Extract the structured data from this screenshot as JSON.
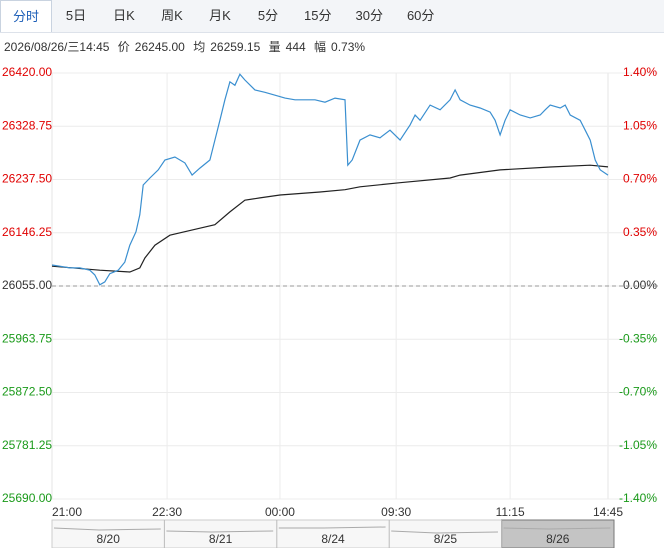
{
  "tabs": [
    "分时",
    "5日",
    "日K",
    "周K",
    "月K",
    "5分",
    "15分",
    "30分",
    "60分"
  ],
  "active_tab": 0,
  "info": {
    "datetime": "2026/08/26/三14:45",
    "price_label": "价",
    "price": "26245.00",
    "avg_label": "均",
    "avg": "26259.15",
    "vol_label": "量",
    "vol": "444",
    "chg_label": "幅",
    "chg": "0.73%"
  },
  "chart_data": {
    "type": "line",
    "base": 26055,
    "up_color": "#e00000",
    "down_color": "#1a9a1a",
    "flat_color": "#333333",
    "grid": true,
    "xlim": [
      0,
      100
    ],
    "xticks": [
      {
        "value": 0,
        "label": "21:00"
      },
      {
        "value": 20.7,
        "label": "22:30"
      },
      {
        "value": 41,
        "label": "00:00"
      },
      {
        "value": 61.9,
        "label": "09:30"
      },
      {
        "value": 82.4,
        "label": "11:15"
      },
      {
        "value": 100,
        "label": "14:45"
      }
    ],
    "ylim": [
      25690,
      26420
    ],
    "yticks": [
      {
        "value": 26420,
        "label": "26420.00"
      },
      {
        "value": 26328.75,
        "label": "26328.75"
      },
      {
        "value": 26237.5,
        "label": "26237.50"
      },
      {
        "value": 26146.25,
        "label": "26146.25"
      },
      {
        "value": 26055,
        "label": "26055.00"
      },
      {
        "value": 25963.75,
        "label": "25963.75"
      },
      {
        "value": 25872.5,
        "label": "25872.50"
      },
      {
        "value": 25781.25,
        "label": "25781.25"
      },
      {
        "value": 25690,
        "label": "25690.00"
      }
    ],
    "y2lim": [
      -1.4,
      1.4
    ],
    "y2ticks": [
      {
        "value": 1.4,
        "label": "1.40%"
      },
      {
        "value": 1.05,
        "label": "1.05%"
      },
      {
        "value": 0.7,
        "label": "0.70%"
      },
      {
        "value": 0.35,
        "label": "0.35%"
      },
      {
        "value": 0,
        "label": "0.00%"
      },
      {
        "value": -0.35,
        "label": "-0.35%"
      },
      {
        "value": -0.7,
        "label": "-0.70%"
      },
      {
        "value": -1.05,
        "label": "-1.05%"
      },
      {
        "value": -1.4,
        "label": "-1.40%"
      }
    ],
    "series": [
      {
        "color": "#3a8fd0",
        "x": [
          0,
          1.4,
          3.2,
          5,
          6.8,
          7.7,
          8.6,
          9.5,
          10.4,
          11.9,
          13.1,
          14,
          15.1,
          15.8,
          16.4,
          17.6,
          19.1,
          20.3,
          22.1,
          23.9,
          25.2,
          26.6,
          28.4,
          29.3,
          30.2,
          31.1,
          32,
          32.9,
          33.8,
          34.7,
          36.5,
          38.3,
          40.1,
          41.9,
          43.7,
          45.5,
          47.3,
          49.1,
          50.9,
          52.7,
          53.2,
          54,
          55.4,
          57.2,
          59,
          60.8,
          62.6,
          64.4,
          65.3,
          66.2,
          68,
          69.8,
          71.6,
          72.5,
          73.4,
          75.2,
          77,
          78.8,
          79.7,
          80.6,
          81.5,
          82.4,
          84.2,
          86,
          87.8,
          88.7,
          89.6,
          91.4,
          92.3,
          93.2,
          95,
          95.9,
          96.8,
          97.7,
          98.6,
          100
        ],
        "values": [
          26091,
          26089,
          26086,
          26086,
          26082,
          26074,
          26057,
          26062,
          26076,
          26082,
          26096,
          26125,
          26148,
          26177,
          26228,
          26240,
          26254,
          26271,
          26276,
          26266,
          26245,
          26257,
          26271,
          26305,
          26339,
          26374,
          26405,
          26399,
          26418,
          26408,
          26391,
          26387,
          26382,
          26377,
          26374,
          26374,
          26374,
          26370,
          26377,
          26374,
          26262,
          26271,
          26305,
          26314,
          26309,
          26322,
          26305,
          26331,
          26348,
          26339,
          26365,
          26357,
          26374,
          26391,
          26374,
          26365,
          26360,
          26353,
          26339,
          26314,
          26339,
          26357,
          26348,
          26343,
          26348,
          26357,
          26365,
          26360,
          26365,
          26348,
          26339,
          26322,
          26305,
          26271,
          26254,
          26245
        ]
      },
      {
        "color": "#222222",
        "x": [
          0,
          8.6,
          14,
          15.8,
          16.7,
          18.5,
          21.2,
          26.6,
          29.3,
          32,
          34.7,
          37.4,
          41,
          48.2,
          52.7,
          55.4,
          62.6,
          71.6,
          73.4,
          80.6,
          89.6,
          96.8,
          100
        ],
        "values": [
          26089,
          26082,
          26079,
          26086,
          26103,
          26125,
          26142,
          26154,
          26160,
          26182,
          26202,
          26206,
          26211,
          26216,
          26220,
          26225,
          26232,
          26240,
          26245,
          26254,
          26259,
          26262,
          26259.15
        ]
      }
    ]
  },
  "navigator": {
    "labels": [
      "8/20",
      "8/21",
      "8/24",
      "8/25",
      "8/26"
    ]
  }
}
